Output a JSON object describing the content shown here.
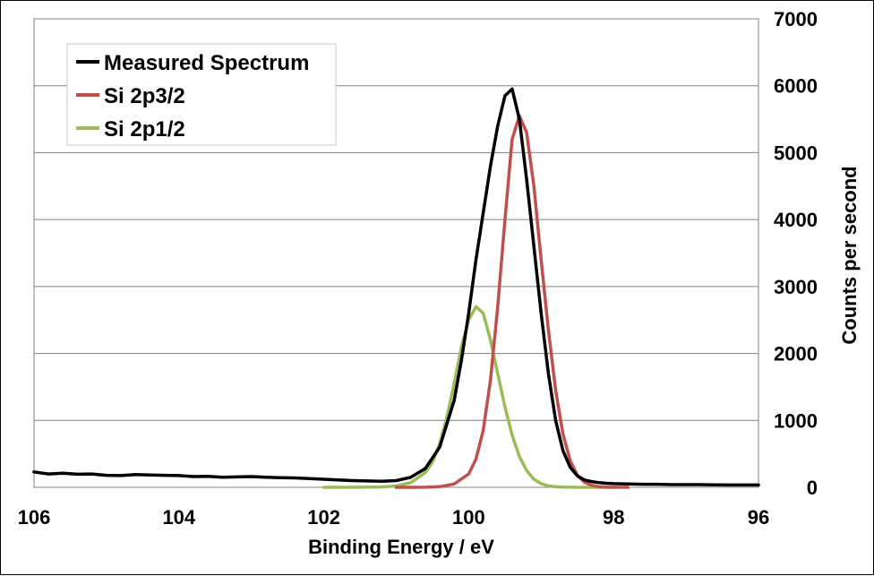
{
  "chart_data": {
    "type": "line",
    "title": "",
    "xlabel": "Binding Energy / eV",
    "ylabel": "Counts per second",
    "xlim": [
      106,
      96
    ],
    "x_reversed": true,
    "ylim": [
      0,
      7000
    ],
    "x_ticks": [
      "106",
      "104",
      "102",
      "100",
      "98",
      "96"
    ],
    "y_ticks": [
      "0",
      "1000",
      "2000",
      "3000",
      "4000",
      "5000",
      "6000",
      "7000"
    ],
    "y_axis_position": "right",
    "grid": "horizontal",
    "legend_position": "top-left",
    "series": [
      {
        "name": "Measured Spectrum",
        "color": "#000000",
        "x": [
          106,
          105.8,
          105.6,
          105.4,
          105.2,
          105,
          104.8,
          104.6,
          104.4,
          104.2,
          104,
          103.8,
          103.6,
          103.4,
          103.2,
          103,
          102.8,
          102.6,
          102.4,
          102.2,
          102,
          101.8,
          101.6,
          101.4,
          101.2,
          101,
          100.8,
          100.6,
          100.4,
          100.2,
          100.1,
          100,
          99.9,
          99.8,
          99.7,
          99.6,
          99.5,
          99.4,
          99.3,
          99.2,
          99.1,
          99,
          98.9,
          98.8,
          98.7,
          98.6,
          98.5,
          98.4,
          98.3,
          98.2,
          98.1,
          98,
          97.8,
          97.6,
          97.4,
          97.2,
          97,
          96.8,
          96.6,
          96.4,
          96.2,
          96
        ],
        "values": [
          230,
          200,
          210,
          195,
          200,
          180,
          175,
          190,
          185,
          180,
          175,
          160,
          165,
          150,
          155,
          160,
          150,
          145,
          140,
          130,
          120,
          110,
          100,
          95,
          90,
          100,
          150,
          280,
          600,
          1300,
          1900,
          2600,
          3400,
          4100,
          4800,
          5400,
          5850,
          5950,
          5500,
          4600,
          3600,
          2600,
          1700,
          1000,
          550,
          300,
          170,
          110,
          85,
          70,
          60,
          55,
          50,
          45,
          45,
          40,
          40,
          40,
          38,
          35,
          35,
          35
        ]
      },
      {
        "name": "Si 2p3/2",
        "color": "#c0504d",
        "x": [
          101,
          100.8,
          100.6,
          100.4,
          100.2,
          100,
          99.9,
          99.8,
          99.7,
          99.6,
          99.5,
          99.4,
          99.3,
          99.2,
          99.1,
          99,
          98.9,
          98.8,
          98.7,
          98.6,
          98.5,
          98.4,
          98.3,
          98.2,
          98.1,
          98,
          97.8
        ],
        "values": [
          0,
          0,
          2,
          10,
          50,
          200,
          420,
          850,
          1600,
          2700,
          4000,
          5200,
          5550,
          5300,
          4500,
          3400,
          2350,
          1450,
          800,
          400,
          180,
          75,
          30,
          10,
          4,
          1,
          0
        ]
      },
      {
        "name": "Si 2p1/2",
        "color": "#9bbb59",
        "x": [
          102,
          101.6,
          101.2,
          101,
          100.8,
          100.6,
          100.5,
          100.4,
          100.3,
          100.2,
          100.1,
          100,
          99.9,
          99.8,
          99.7,
          99.6,
          99.5,
          99.4,
          99.3,
          99.2,
          99.1,
          99,
          98.9,
          98.8,
          98.7,
          98.6,
          98.5,
          98.2,
          98
        ],
        "values": [
          0,
          0,
          5,
          20,
          70,
          220,
          380,
          650,
          1050,
          1550,
          2100,
          2500,
          2700,
          2600,
          2200,
          1700,
          1200,
          780,
          460,
          250,
          120,
          55,
          22,
          8,
          3,
          1,
          0,
          0,
          0
        ]
      }
    ]
  }
}
